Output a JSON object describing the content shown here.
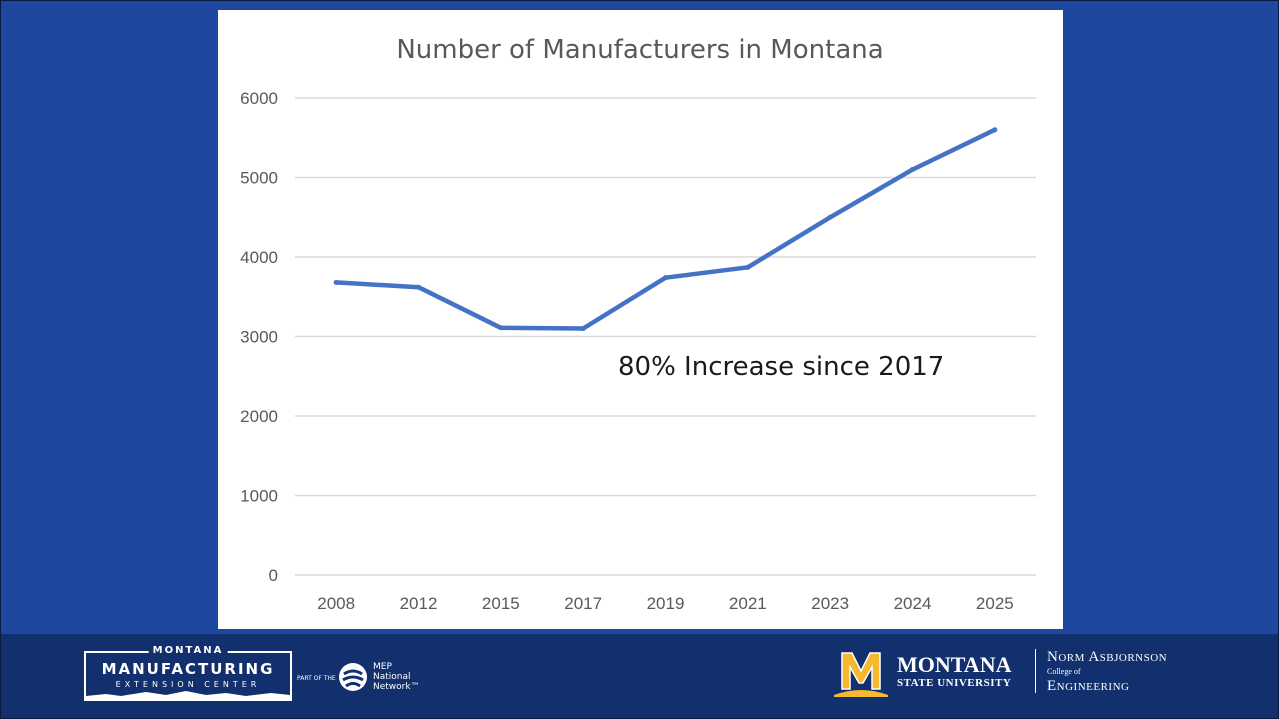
{
  "chart_data": {
    "type": "line",
    "title": "Number of Manufacturers in Montana",
    "categories": [
      "2008",
      "2012",
      "2015",
      "2017",
      "2019",
      "2021",
      "2023",
      "2024",
      "2025"
    ],
    "series": [
      {
        "values": [
          3680,
          3620,
          3110,
          3100,
          3740,
          3870,
          4500,
          5100,
          5600
        ]
      }
    ],
    "yticks": [
      "0",
      "1000",
      "2000",
      "3000",
      "4000",
      "5000",
      "6000"
    ],
    "ylim": [
      0,
      6000
    ],
    "grid": true,
    "annotation": "80% Increase since 2017",
    "colors": {
      "line": "#4472c4",
      "grid": "#d9d9d9",
      "axis_text": "#595959"
    }
  },
  "footer": {
    "mmec": {
      "top": "MONTANA",
      "main": "MANUFACTURING",
      "sub": "EXTENSION CENTER"
    },
    "part_of": "PART OF THE",
    "mep": [
      "MEP",
      "National",
      "Network™"
    ],
    "msu": {
      "name": "MONTANA",
      "sub": "STATE UNIVERSITY"
    },
    "coe": {
      "line1": "Norm Asbjornson",
      "line2": "College of",
      "line3": "Engineering"
    },
    "colors": {
      "background": "#12306e",
      "slide": "#1e47a0",
      "msu_gold": "#f5b82e"
    }
  }
}
